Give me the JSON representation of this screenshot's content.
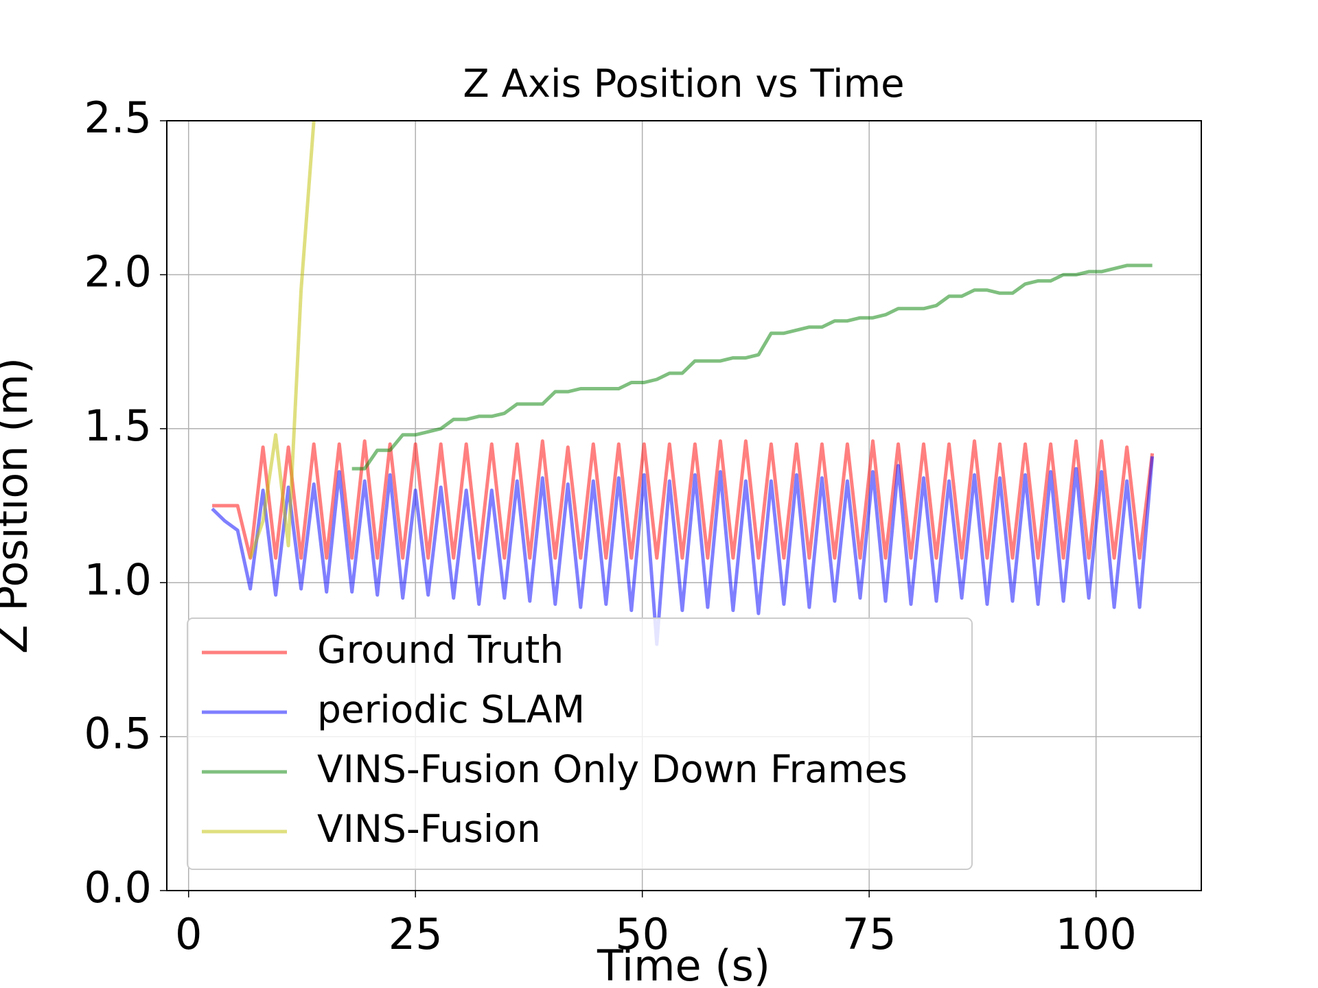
{
  "chart_data": {
    "type": "line",
    "title": "Z Axis Position vs Time",
    "x_label": "Time (s)",
    "y_label": "Z Position (m)",
    "x": [
      2.6,
      4.0,
      5.4,
      6.8,
      8.2,
      9.6,
      11.0,
      12.4,
      13.8,
      15.2,
      16.6,
      18.0,
      19.4,
      20.8,
      22.2,
      23.6,
      25.0,
      26.4,
      27.8,
      29.2,
      30.6,
      32.0,
      33.4,
      34.8,
      36.2,
      37.6,
      39.0,
      40.4,
      41.8,
      43.2,
      44.6,
      46.0,
      47.4,
      48.8,
      50.2,
      51.6,
      53.0,
      54.4,
      55.8,
      57.2,
      58.6,
      60.0,
      61.4,
      62.8,
      64.2,
      65.6,
      67.0,
      68.4,
      69.8,
      71.2,
      72.6,
      74.0,
      75.4,
      76.8,
      78.2,
      79.6,
      81.0,
      82.4,
      83.8,
      85.2,
      86.6,
      88.0,
      89.4,
      90.8,
      92.2,
      93.6,
      95.0,
      96.4,
      97.8,
      99.2,
      100.6,
      102.0,
      103.4,
      104.8,
      106.2
    ],
    "series": [
      {
        "name": "Ground Truth",
        "color": "#ff0000",
        "values": [
          1.25,
          1.25,
          1.25,
          1.08,
          1.44,
          1.08,
          1.44,
          1.08,
          1.45,
          1.08,
          1.45,
          1.08,
          1.46,
          1.08,
          1.45,
          1.08,
          1.45,
          1.08,
          1.45,
          1.08,
          1.45,
          1.08,
          1.45,
          1.08,
          1.45,
          1.08,
          1.46,
          1.08,
          1.44,
          1.08,
          1.45,
          1.08,
          1.45,
          1.08,
          1.45,
          1.08,
          1.45,
          1.08,
          1.45,
          1.08,
          1.46,
          1.08,
          1.46,
          1.08,
          1.45,
          1.08,
          1.45,
          1.08,
          1.45,
          1.08,
          1.45,
          1.08,
          1.46,
          1.08,
          1.45,
          1.08,
          1.45,
          1.08,
          1.45,
          1.08,
          1.46,
          1.08,
          1.45,
          1.08,
          1.45,
          1.08,
          1.45,
          1.08,
          1.46,
          1.08,
          1.46,
          1.08,
          1.44,
          1.08,
          1.42
        ]
      },
      {
        "name": "periodic SLAM",
        "color": "#0000ff",
        "values": [
          1.24,
          1.2,
          1.17,
          0.98,
          1.3,
          0.96,
          1.31,
          0.98,
          1.32,
          0.97,
          1.36,
          0.97,
          1.33,
          0.96,
          1.35,
          0.95,
          1.3,
          0.96,
          1.31,
          0.95,
          1.3,
          0.93,
          1.3,
          0.95,
          1.33,
          0.94,
          1.34,
          0.93,
          1.32,
          0.92,
          1.33,
          0.93,
          1.34,
          0.91,
          1.35,
          0.8,
          1.33,
          0.91,
          1.35,
          0.92,
          1.36,
          0.91,
          1.33,
          0.9,
          1.33,
          0.93,
          1.35,
          0.92,
          1.34,
          0.94,
          1.33,
          0.95,
          1.36,
          0.94,
          1.38,
          0.93,
          1.34,
          0.94,
          1.33,
          0.95,
          1.35,
          0.93,
          1.34,
          0.94,
          1.35,
          0.93,
          1.36,
          0.94,
          1.37,
          0.95,
          1.36,
          0.92,
          1.33,
          0.92,
          1.41
        ]
      },
      {
        "name": "VINS-Fusion Only Down Frames",
        "color": "#008000",
        "values": [
          null,
          null,
          null,
          null,
          null,
          null,
          null,
          null,
          null,
          null,
          null,
          1.37,
          1.37,
          1.43,
          1.43,
          1.48,
          1.48,
          1.49,
          1.5,
          1.53,
          1.53,
          1.54,
          1.54,
          1.55,
          1.58,
          1.58,
          1.58,
          1.62,
          1.62,
          1.63,
          1.63,
          1.63,
          1.63,
          1.65,
          1.65,
          1.66,
          1.68,
          1.68,
          1.72,
          1.72,
          1.72,
          1.73,
          1.73,
          1.74,
          1.81,
          1.81,
          1.82,
          1.83,
          1.83,
          1.85,
          1.85,
          1.86,
          1.86,
          1.87,
          1.89,
          1.89,
          1.89,
          1.9,
          1.93,
          1.93,
          1.95,
          1.95,
          1.94,
          1.94,
          1.97,
          1.98,
          1.98,
          2.0,
          2.0,
          2.01,
          2.01,
          2.02,
          2.03,
          2.03,
          2.03
        ]
      },
      {
        "name": "VINS-Fusion",
        "color": "#bfbf00",
        "values": [
          null,
          null,
          null,
          1.08,
          1.2,
          1.48,
          1.12,
          1.95,
          2.5,
          null,
          null,
          null,
          null,
          null,
          null,
          null,
          null,
          null,
          null,
          null,
          null,
          null,
          null,
          null,
          null,
          null,
          null,
          null,
          null,
          null,
          null,
          null,
          null,
          null,
          null,
          null,
          null,
          null,
          null,
          null,
          null,
          null,
          null,
          null,
          null,
          null,
          null,
          null,
          null,
          null,
          null,
          null,
          null,
          null,
          null,
          null,
          null,
          null,
          null,
          null,
          null,
          null,
          null,
          null,
          null,
          null,
          null,
          null,
          null,
          null,
          null,
          null,
          null,
          null,
          null
        ]
      }
    ],
    "xlim": [
      -2.4,
      111.6
    ],
    "ylim": [
      0,
      2.5
    ],
    "xticks": [
      0,
      25,
      50,
      75,
      100
    ],
    "yticks": [
      {
        "value": 0,
        "label": "0.0"
      },
      0.5,
      {
        "value": 1,
        "label": "1.0"
      },
      1.5,
      {
        "value": 2,
        "label": "2.0"
      },
      2.5
    ],
    "grid": true,
    "legend": "lower left"
  }
}
